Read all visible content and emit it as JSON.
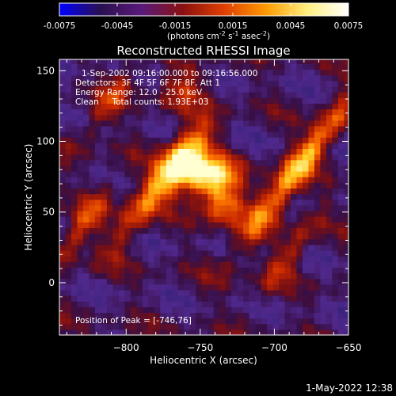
{
  "colorbar": {
    "ticks": [
      "-0.0075",
      "-0.0045",
      "-0.0015",
      "0.0015",
      "0.0045",
      "0.0075"
    ],
    "unit_html": "(photons cm<tspan baseline-shift='super' font-size='8'>-2</tspan> s<tspan baseline-shift='super' font-size='8'>-1</tspan> asec<tspan baseline-shift='super' font-size='8'>-2</tspan>)",
    "unit_parts": [
      "(photons cm",
      "-2",
      " s",
      "-1",
      " asec",
      "-2",
      ")"
    ],
    "colors": [
      "#0000ff",
      "#2a1050",
      "#5a1a7a",
      "#8a1010",
      "#e04000",
      "#ff9a00",
      "#fff080",
      "#ffffff"
    ]
  },
  "chart_data": {
    "type": "heatmap",
    "title": "Reconstructed RHESSI Image",
    "xlabel": "Heliocentric X (arcsec)",
    "ylabel": "Heliocentric Y (arcsec)",
    "xlim": [
      -845,
      -650
    ],
    "ylim": [
      -37,
      158
    ],
    "x_ticks": [
      -800,
      -750,
      -700,
      -650
    ],
    "y_ticks": [
      0,
      50,
      100,
      150
    ],
    "x_tick_labels": [
      "−800",
      "−750",
      "−700",
      "−650"
    ],
    "y_tick_labels": [
      "0",
      "50",
      "100",
      "150"
    ],
    "annotations": [
      "1-Sep-2002 09:16:00.000 to 09:16:56.000",
      "Detectors: 3F 4F 5F 6F 7F 8F, Att 1",
      "Energy Range: 12.0 - 25.0 keV",
      "Clean     Total counts: 1.93E+03"
    ],
    "peak_label": "Position of Peak = [-746,76]",
    "peak": [
      -746,
      76
    ],
    "peak_value": 0.0075,
    "value_range": [
      -0.0075,
      0.0075
    ]
  },
  "footer": {
    "timestamp": "1-May-2022 12:38"
  }
}
